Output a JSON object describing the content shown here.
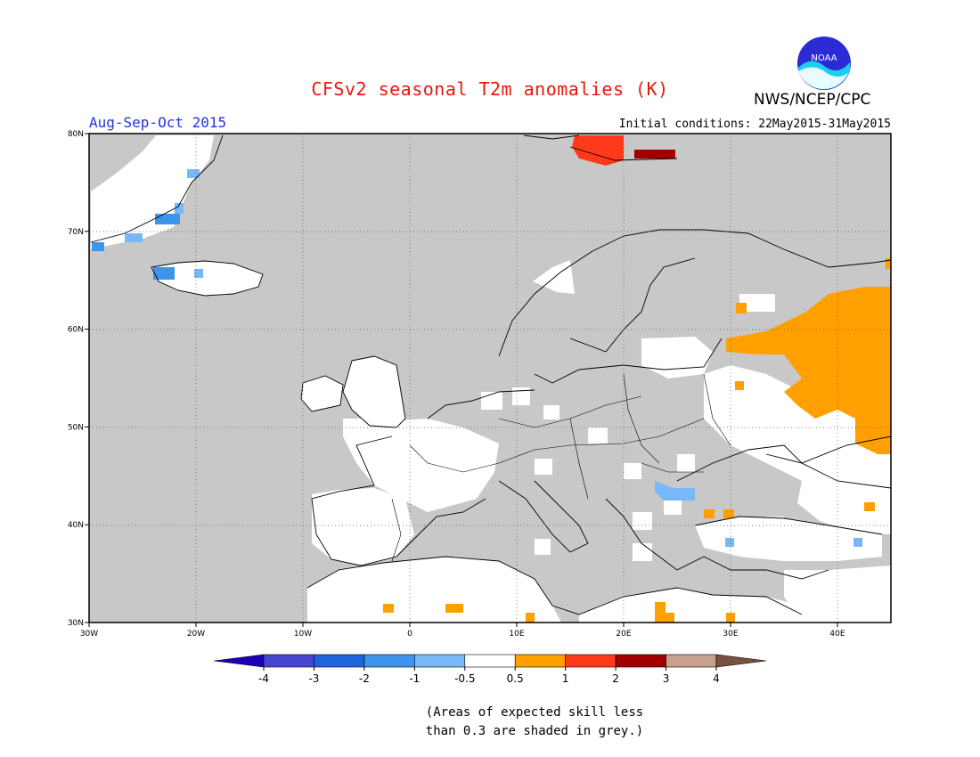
{
  "header": {
    "title": "CFSv2 seasonal T2m anomalies (K)",
    "agency": "NWS/NCEP/CPC",
    "season": "Aug-Sep-Oct 2015",
    "initial_conditions": "Initial conditions: 22May2015-31May2015",
    "logo_text": "NOAA"
  },
  "map": {
    "lon_range": [
      -30,
      45
    ],
    "lat_range": [
      30,
      80
    ],
    "lon_ticks": [
      {
        "value": -30,
        "label": "30W"
      },
      {
        "value": -20,
        "label": "20W"
      },
      {
        "value": -10,
        "label": "10W"
      },
      {
        "value": 0,
        "label": "0"
      },
      {
        "value": 10,
        "label": "10E"
      },
      {
        "value": 20,
        "label": "20E"
      },
      {
        "value": 30,
        "label": "30E"
      },
      {
        "value": 40,
        "label": "40E"
      }
    ],
    "lat_ticks": [
      {
        "value": 30,
        "label": "30N"
      },
      {
        "value": 40,
        "label": "40N"
      },
      {
        "value": 50,
        "label": "50N"
      },
      {
        "value": 60,
        "label": "60N"
      },
      {
        "value": 70,
        "label": "70N"
      },
      {
        "value": 80,
        "label": "80N"
      }
    ],
    "low_skill_color": "#c8c8c8",
    "anomaly_regions": [
      {
        "value": 0.75,
        "color": "#ffa000",
        "label": "western Russia"
      },
      {
        "value": 1.5,
        "color": "#ff3a1a",
        "label": "Svalbard"
      },
      {
        "value": 2.5,
        "color": "#a00000",
        "label": "eastern Svalbard"
      },
      {
        "value": -0.75,
        "color": "#78b8f8",
        "label": "Romania"
      },
      {
        "value": -1.5,
        "color": "#3c94ec",
        "label": "Greenland"
      }
    ]
  },
  "colorbar": {
    "bins": [
      {
        "color": "#1e00b4"
      },
      {
        "color": "#4646d2"
      },
      {
        "color": "#1e64dc"
      },
      {
        "color": "#3c94ec"
      },
      {
        "color": "#78b8f8"
      },
      {
        "color": "#ffffff"
      },
      {
        "color": "#ffa000"
      },
      {
        "color": "#ff3a1a"
      },
      {
        "color": "#a00000"
      },
      {
        "color": "#c8a090"
      },
      {
        "color": "#7a5040"
      }
    ],
    "tick_labels": [
      "-4",
      "-3",
      "-2",
      "-1",
      "-0.5",
      "0.5",
      "1",
      "2",
      "3",
      "4"
    ]
  },
  "footnote": {
    "line1": "(Areas of expected skill less",
    "line2": "than 0.3 are shaded in grey.)"
  }
}
